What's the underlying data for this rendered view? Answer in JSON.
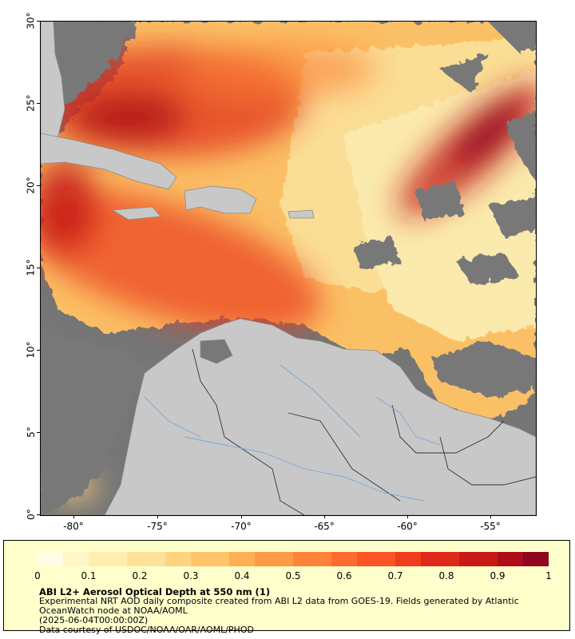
{
  "map": {
    "lat_labels": [
      "30°",
      "25°",
      "20°",
      "15°",
      "10°",
      "5°",
      "0°"
    ],
    "lon_labels": [
      "-80°",
      "-75°",
      "-70°",
      "-65°",
      "-60°",
      "-55°"
    ],
    "lat_range": [
      0,
      30
    ],
    "lon_range": [
      -82,
      -52.5
    ],
    "colors": {
      "land": "#c8c8c8",
      "no_data": "#787878",
      "rivers": "#7aa6d8",
      "borders": "#333333"
    }
  },
  "legend": {
    "ticks": [
      "0",
      "0.1",
      "0.2",
      "0.3",
      "0.4",
      "0.5",
      "0.6",
      "0.7",
      "0.8",
      "0.9",
      "1"
    ],
    "range": [
      0,
      1
    ],
    "title": "ABI L2+ Aerosol Optical Depth at 550 nm (1)",
    "line1": "Experimental NRT AOD daily composite created from ABI L2 data from GOES-19. Fields generated by Atlantic",
    "line2": "OceanWatch node at NOAA/AOML",
    "line3": "(2025-06-04T00:00:00Z)",
    "line4": "Data courtesy of USDOC/NOAA/OAR/AOML/PHOD",
    "colors": [
      "#fffde6",
      "#fff6c9",
      "#ffeeb0",
      "#ffe298",
      "#ffd480",
      "#ffc468",
      "#ffb054",
      "#ff9a44",
      "#ff8338",
      "#ff6b2e",
      "#fb5425",
      "#ef3d1d",
      "#de2a18",
      "#c81a16",
      "#ae0e1a",
      "#8e061f"
    ]
  }
}
